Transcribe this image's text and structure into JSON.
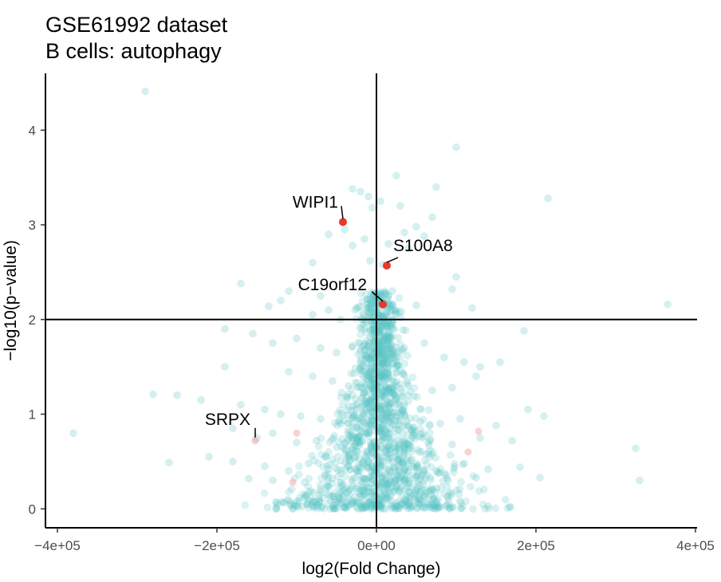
{
  "chart_data": {
    "type": "scatter",
    "title": "GSE61992 dataset",
    "subtitle": "B cells: autophagy",
    "xlabel": "log2(Fold Change)",
    "ylabel": "−log10(p−value)",
    "xlim": [
      -415000,
      402000
    ],
    "ylim": [
      -0.2,
      4.6
    ],
    "x_ticks": [
      -400000,
      -200000,
      0,
      200000,
      400000
    ],
    "x_tick_labels": [
      "−4e+05",
      "−2e+05",
      "0e+00",
      "2e+05",
      "4e+05"
    ],
    "y_ticks": [
      0,
      1,
      2,
      3,
      4
    ],
    "y_tick_labels": [
      "0",
      "1",
      "2",
      "3",
      "4"
    ],
    "threshold_lines": {
      "vertical_x": 0,
      "horizontal_y": 2
    },
    "colors": {
      "background_points": "#5bc2c6",
      "highlight_points": "#e8392a",
      "faint_highlight_points": "#f4a7a0",
      "lines": "#000000"
    },
    "background_points": [
      [
        -290000,
        4.41
      ],
      [
        100000,
        3.82
      ],
      [
        -30000,
        3.38
      ],
      [
        -20000,
        3.35
      ],
      [
        25000,
        3.52
      ],
      [
        75000,
        3.4
      ],
      [
        -10000,
        3.3
      ],
      [
        5000,
        3.25
      ],
      [
        30000,
        3.2
      ],
      [
        -5000,
        3.18
      ],
      [
        215000,
        3.28
      ],
      [
        70000,
        3.08
      ],
      [
        50000,
        2.98
      ],
      [
        -40000,
        2.95
      ],
      [
        35000,
        2.92
      ],
      [
        -60000,
        2.9
      ],
      [
        60000,
        2.88
      ],
      [
        -15000,
        2.85
      ],
      [
        15000,
        2.8
      ],
      [
        -30000,
        2.78
      ],
      [
        40000,
        2.75
      ],
      [
        -80000,
        2.6
      ],
      [
        -8000,
        2.62
      ],
      [
        8000,
        2.58
      ],
      [
        -170000,
        2.38
      ],
      [
        -110000,
        2.3
      ],
      [
        -70000,
        2.25
      ],
      [
        100000,
        2.45
      ],
      [
        95000,
        2.32
      ],
      [
        20000,
        2.3
      ],
      [
        -120000,
        2.2
      ],
      [
        50000,
        2.15
      ],
      [
        -60000,
        2.1
      ],
      [
        -25000,
        2.12
      ],
      [
        10000,
        2.18
      ],
      [
        120000,
        2.12
      ],
      [
        365000,
        2.16
      ],
      [
        -135000,
        2.14
      ],
      [
        -80000,
        2.05
      ],
      [
        30000,
        2.02
      ],
      [
        -45000,
        2.0
      ],
      [
        -190000,
        1.9
      ],
      [
        -155000,
        1.85
      ],
      [
        -130000,
        1.75
      ],
      [
        -100000,
        1.8
      ],
      [
        -70000,
        1.7
      ],
      [
        -50000,
        1.65
      ],
      [
        -30000,
        1.72
      ],
      [
        -15000,
        1.68
      ],
      [
        15000,
        1.78
      ],
      [
        35000,
        1.7
      ],
      [
        60000,
        1.75
      ],
      [
        85000,
        1.6
      ],
      [
        110000,
        1.55
      ],
      [
        130000,
        1.5
      ],
      [
        155000,
        1.55
      ],
      [
        185000,
        1.88
      ],
      [
        -190000,
        1.5
      ],
      [
        -110000,
        1.45
      ],
      [
        -80000,
        1.4
      ],
      [
        -55000,
        1.35
      ],
      [
        -35000,
        1.3
      ],
      [
        -10000,
        1.4
      ],
      [
        10000,
        1.35
      ],
      [
        40000,
        1.3
      ],
      [
        70000,
        1.25
      ],
      [
        95000,
        1.28
      ],
      [
        125000,
        1.4
      ],
      [
        -280000,
        1.21
      ],
      [
        -250000,
        1.2
      ],
      [
        -220000,
        1.15
      ],
      [
        -170000,
        1.1
      ],
      [
        -140000,
        1.05
      ],
      [
        -120000,
        1.0
      ],
      [
        -95000,
        0.98
      ],
      [
        -70000,
        0.95
      ],
      [
        -45000,
        0.9
      ],
      [
        -20000,
        0.95
      ],
      [
        5000,
        1.05
      ],
      [
        25000,
        0.98
      ],
      [
        55000,
        0.92
      ],
      [
        80000,
        0.9
      ],
      [
        105000,
        0.95
      ],
      [
        150000,
        0.88
      ],
      [
        190000,
        1.05
      ],
      [
        210000,
        0.98
      ],
      [
        -380000,
        0.8
      ],
      [
        -180000,
        0.85
      ],
      [
        -150000,
        0.75
      ],
      [
        -130000,
        0.8
      ],
      [
        -100000,
        0.7
      ],
      [
        -75000,
        0.72
      ],
      [
        -50000,
        0.65
      ],
      [
        -25000,
        0.7
      ],
      [
        10000,
        0.75
      ],
      [
        35000,
        0.65
      ],
      [
        65000,
        0.7
      ],
      [
        95000,
        0.68
      ],
      [
        130000,
        0.75
      ],
      [
        170000,
        0.72
      ],
      [
        325000,
        0.64
      ],
      [
        -260000,
        0.49
      ],
      [
        -210000,
        0.55
      ],
      [
        -180000,
        0.5
      ],
      [
        -140000,
        0.45
      ],
      [
        -110000,
        0.4
      ],
      [
        -85000,
        0.48
      ],
      [
        -60000,
        0.42
      ],
      [
        -35000,
        0.45
      ],
      [
        -10000,
        0.5
      ],
      [
        15000,
        0.42
      ],
      [
        45000,
        0.45
      ],
      [
        75000,
        0.4
      ],
      [
        110000,
        0.48
      ],
      [
        140000,
        0.42
      ],
      [
        180000,
        0.44
      ],
      [
        -160000,
        0.32
      ],
      [
        -130000,
        0.3
      ],
      [
        -90000,
        0.28
      ],
      [
        -55000,
        0.32
      ],
      [
        -20000,
        0.3
      ],
      [
        20000,
        0.28
      ],
      [
        55000,
        0.32
      ],
      [
        90000,
        0.3
      ],
      [
        125000,
        0.33
      ],
      [
        205000,
        0.33
      ],
      [
        330000,
        0.3
      ],
      [
        -70000,
        0.18
      ],
      [
        -40000,
        0.2
      ],
      [
        -15000,
        0.15
      ],
      [
        10000,
        0.2
      ],
      [
        40000,
        0.18
      ],
      [
        70000,
        0.2
      ],
      [
        -30000,
        0.08
      ],
      [
        -5000,
        0.05
      ],
      [
        5000,
        0.1
      ],
      [
        25000,
        0.06
      ],
      [
        -45000,
        0.06
      ],
      [
        50000,
        0.08
      ],
      [
        0,
        0.02
      ],
      [
        -2000,
        0.02
      ],
      [
        3000,
        0.03
      ]
    ],
    "highlighted_genes": [
      {
        "label": "WIPI1",
        "x": -42000,
        "y": 3.03
      },
      {
        "label": "S100A8",
        "x": 13000,
        "y": 2.57
      },
      {
        "label": "C19orf12",
        "x": 8000,
        "y": 2.16
      },
      {
        "label": "SRPX",
        "x": -152000,
        "y": 0.72
      }
    ],
    "faint_highlights": [
      [
        -105000,
        0.28
      ],
      [
        115000,
        0.6
      ],
      [
        128000,
        0.82
      ],
      [
        -100000,
        0.8
      ]
    ]
  }
}
